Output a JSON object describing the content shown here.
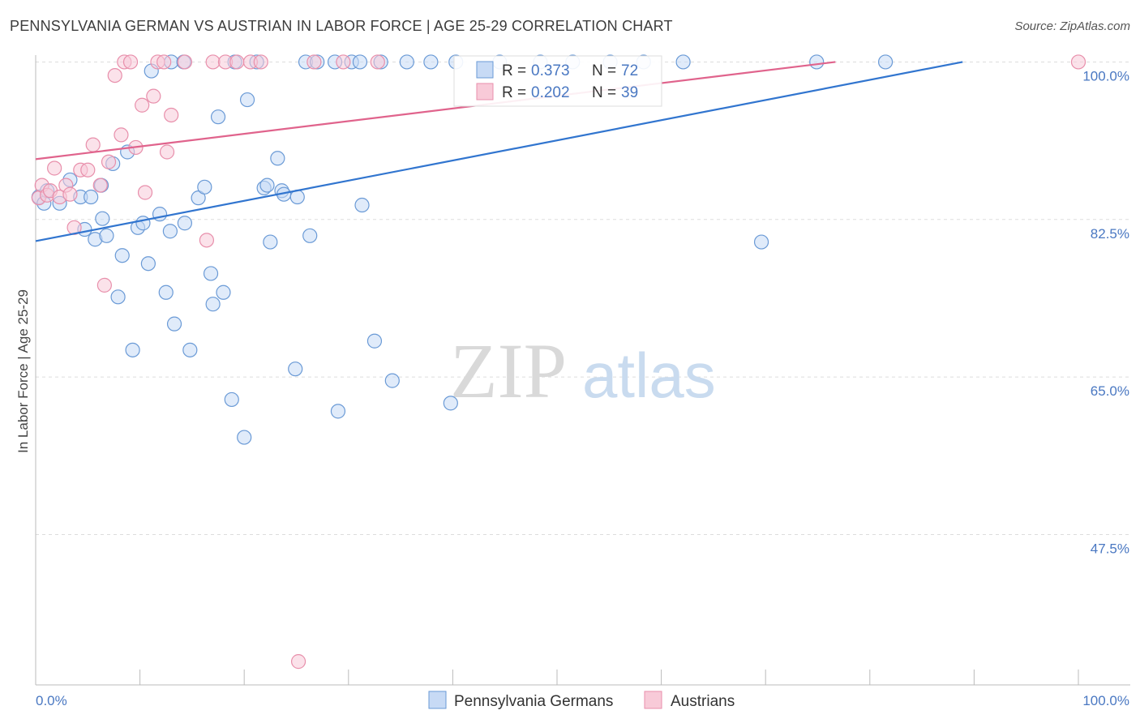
{
  "header": {
    "title": "PENNSYLVANIA GERMAN VS AUSTRIAN IN LABOR FORCE | AGE 25-29 CORRELATION CHART",
    "source": "Source: ZipAtlas.com"
  },
  "watermark": {
    "part1": "ZIP",
    "part2": "atlas"
  },
  "colors": {
    "blue_fill": "#c7daf5",
    "blue_stroke": "#6a9ad6",
    "blue_line": "#3175cf",
    "pink_fill": "#f8cad8",
    "pink_stroke": "#e88fab",
    "pink_line": "#e0638c",
    "grid": "#dddddd",
    "tick_text": "#4a78c2"
  },
  "chart_data": {
    "type": "scatter",
    "ylabel": "In Labor Force | Age 25-29",
    "x_tick_labels": [
      "0.0%",
      "100.0%"
    ],
    "y_tick_labels": [
      "100.0%",
      "82.5%",
      "65.0%",
      "47.5%"
    ],
    "y_ticks": [
      100.0,
      82.5,
      65.0,
      47.5
    ],
    "xlim": [
      0,
      100
    ],
    "ylim": [
      30.8,
      101.3
    ],
    "grid": true,
    "legend": {
      "placement": "top-center",
      "rows": [
        {
          "r_label": "R =",
          "r_value": "0.373",
          "n_label": "N =",
          "n_value": "72"
        },
        {
          "r_label": "R =",
          "r_value": "0.202",
          "n_label": "N =",
          "n_value": "39"
        }
      ]
    },
    "series": [
      {
        "name": "Pennsylvania Germans",
        "color": "#6a9ad6",
        "trend": {
          "x": [
            0,
            88.9
          ],
          "y": [
            80.1,
            100.0
          ]
        },
        "points": [
          [
            0.3,
            85.0
          ],
          [
            0.8,
            84.3
          ],
          [
            1.1,
            85.7
          ],
          [
            2.3,
            84.3
          ],
          [
            3.3,
            86.9
          ],
          [
            4.3,
            85.0
          ],
          [
            4.7,
            81.4
          ],
          [
            5.3,
            85.0
          ],
          [
            5.7,
            80.3
          ],
          [
            6.3,
            86.3
          ],
          [
            6.4,
            82.6
          ],
          [
            6.8,
            80.7
          ],
          [
            7.4,
            88.7
          ],
          [
            7.9,
            73.9
          ],
          [
            8.3,
            78.5
          ],
          [
            8.8,
            90.0
          ],
          [
            9.3,
            68.0
          ],
          [
            9.8,
            81.6
          ],
          [
            10.3,
            82.1
          ],
          [
            10.8,
            77.6
          ],
          [
            11.1,
            99.0
          ],
          [
            11.9,
            83.1
          ],
          [
            12.5,
            74.4
          ],
          [
            12.9,
            81.2
          ],
          [
            13.0,
            100.0
          ],
          [
            13.3,
            70.9
          ],
          [
            14.2,
            100.0
          ],
          [
            14.3,
            82.1
          ],
          [
            14.8,
            68.0
          ],
          [
            15.6,
            84.9
          ],
          [
            16.2,
            86.1
          ],
          [
            16.8,
            76.5
          ],
          [
            17.0,
            73.1
          ],
          [
            17.5,
            93.9
          ],
          [
            18.0,
            74.4
          ],
          [
            18.8,
            62.5
          ],
          [
            19.1,
            100.0
          ],
          [
            20.0,
            58.3
          ],
          [
            20.3,
            95.8
          ],
          [
            21.2,
            100.0
          ],
          [
            21.9,
            86.0
          ],
          [
            22.2,
            86.3
          ],
          [
            22.5,
            80.0
          ],
          [
            23.2,
            89.3
          ],
          [
            23.6,
            85.7
          ],
          [
            23.8,
            85.3
          ],
          [
            24.9,
            65.9
          ],
          [
            25.1,
            85.0
          ],
          [
            25.9,
            100.0
          ],
          [
            26.3,
            80.7
          ],
          [
            27.0,
            100.0
          ],
          [
            28.7,
            100.0
          ],
          [
            29.0,
            61.2
          ],
          [
            30.3,
            100.0
          ],
          [
            31.1,
            100.0
          ],
          [
            31.3,
            84.1
          ],
          [
            32.5,
            69.0
          ],
          [
            33.1,
            100.0
          ],
          [
            34.2,
            64.6
          ],
          [
            35.6,
            100.0
          ],
          [
            37.9,
            100.0
          ],
          [
            39.8,
            62.1
          ],
          [
            40.3,
            100.0
          ],
          [
            44.5,
            100.0
          ],
          [
            48.4,
            100.0
          ],
          [
            51.5,
            100.0
          ],
          [
            55.1,
            100.0
          ],
          [
            58.3,
            100.0
          ],
          [
            62.1,
            100.0
          ],
          [
            69.6,
            80.0
          ],
          [
            74.9,
            100.0
          ],
          [
            81.5,
            100.0
          ]
        ]
      },
      {
        "name": "Austrians",
        "color": "#e88fab",
        "trend": {
          "x": [
            0,
            76.7
          ],
          "y": [
            89.2,
            100.0
          ]
        },
        "points": [
          [
            0.3,
            84.9
          ],
          [
            0.6,
            86.3
          ],
          [
            1.1,
            85.2
          ],
          [
            1.4,
            85.7
          ],
          [
            1.8,
            88.2
          ],
          [
            2.3,
            85.0
          ],
          [
            2.9,
            86.3
          ],
          [
            3.3,
            85.3
          ],
          [
            3.7,
            81.6
          ],
          [
            4.3,
            88.0
          ],
          [
            5.0,
            88.0
          ],
          [
            5.5,
            90.8
          ],
          [
            6.2,
            86.3
          ],
          [
            6.6,
            75.2
          ],
          [
            7.0,
            88.9
          ],
          [
            7.6,
            98.5
          ],
          [
            8.2,
            91.9
          ],
          [
            8.5,
            100.0
          ],
          [
            9.1,
            100.0
          ],
          [
            9.6,
            90.5
          ],
          [
            10.2,
            95.2
          ],
          [
            10.5,
            85.5
          ],
          [
            11.3,
            96.2
          ],
          [
            11.7,
            100.0
          ],
          [
            12.3,
            100.0
          ],
          [
            12.6,
            90.0
          ],
          [
            13.0,
            94.1
          ],
          [
            14.3,
            100.0
          ],
          [
            16.4,
            80.2
          ],
          [
            17.0,
            100.0
          ],
          [
            18.2,
            100.0
          ],
          [
            19.3,
            100.0
          ],
          [
            20.6,
            100.0
          ],
          [
            21.6,
            100.0
          ],
          [
            25.2,
            33.4
          ],
          [
            26.7,
            100.0
          ],
          [
            29.5,
            100.0
          ],
          [
            32.8,
            100.0
          ],
          [
            100.0,
            100.0
          ]
        ]
      }
    ]
  }
}
